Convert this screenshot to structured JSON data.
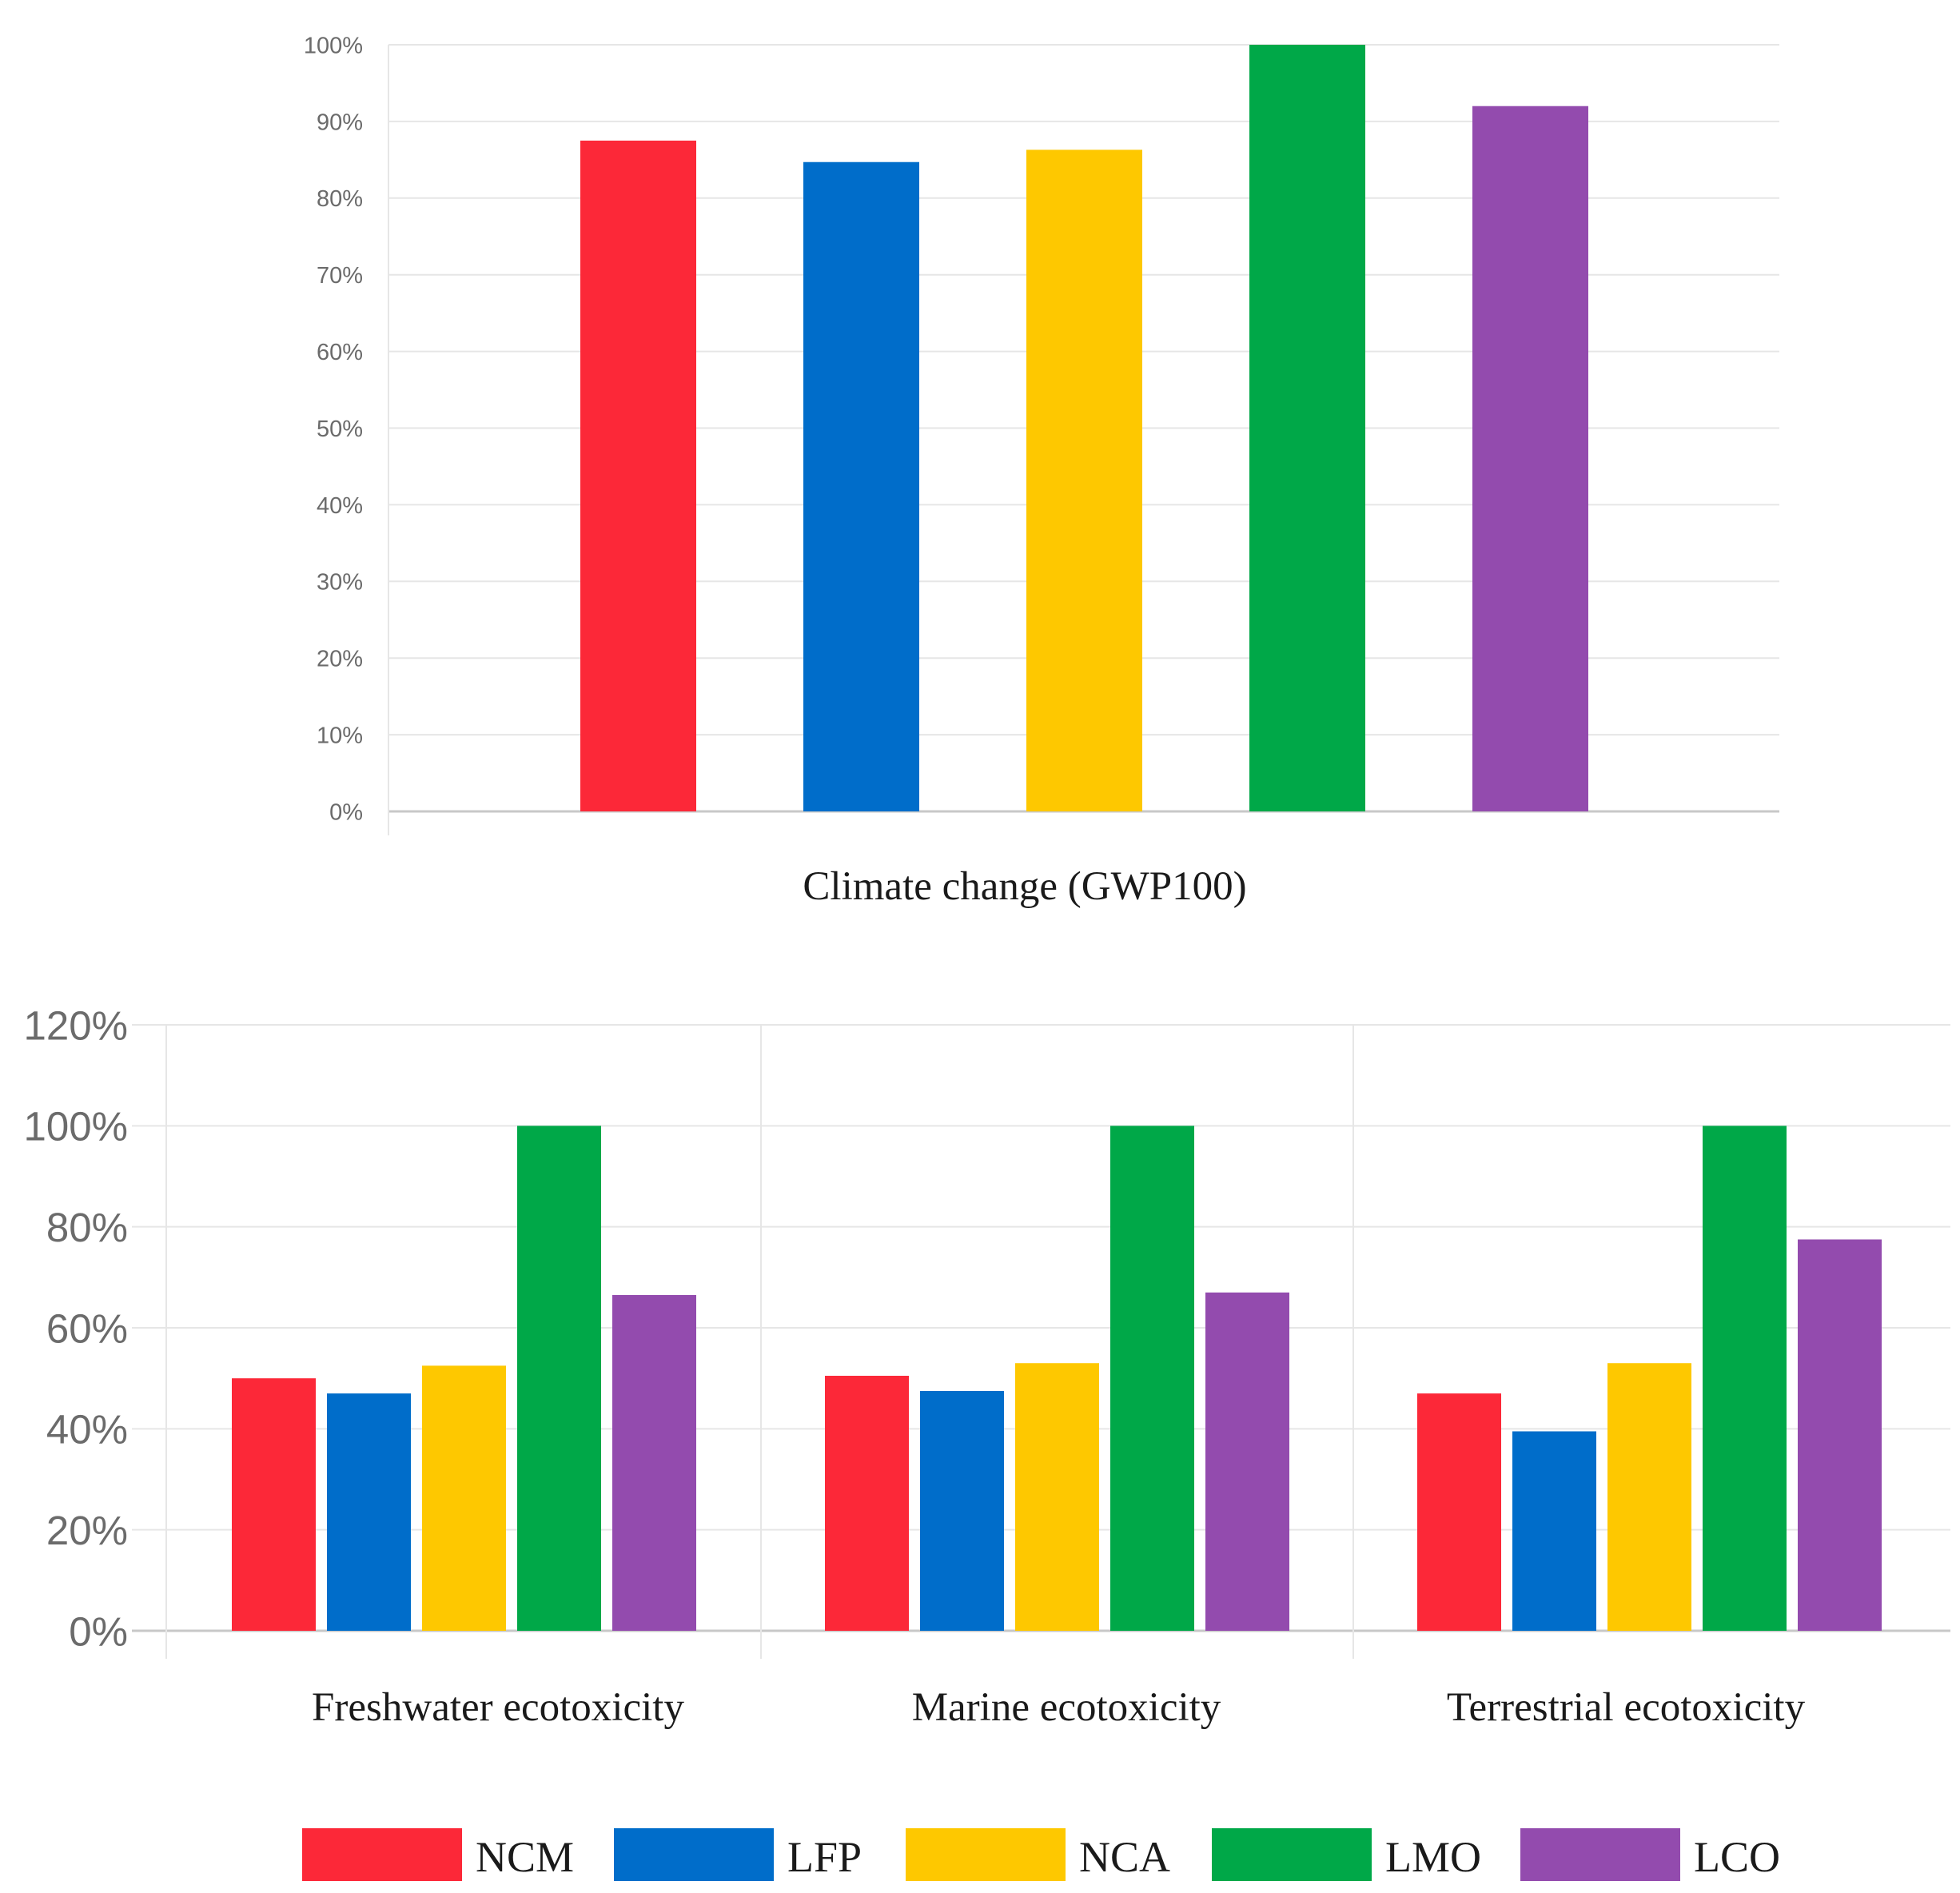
{
  "colors": {
    "NCM": "#fc2838",
    "LFP": "#006dca",
    "NCA": "#fec800",
    "LMO": "#00a848",
    "LCO": "#934bae"
  },
  "legend": {
    "items": [
      "NCM",
      "LFP",
      "NCA",
      "LMO",
      "LCO"
    ]
  },
  "chart_data": [
    {
      "type": "bar",
      "categories": [
        "Climate change (GWP100)"
      ],
      "series": [
        {
          "name": "NCM",
          "values": [
            87.5
          ]
        },
        {
          "name": "LFP",
          "values": [
            84.7
          ]
        },
        {
          "name": "NCA",
          "values": [
            86.3
          ]
        },
        {
          "name": "LMO",
          "values": [
            100
          ]
        },
        {
          "name": "LCO",
          "values": [
            92
          ]
        }
      ],
      "ylim": [
        0,
        100
      ],
      "yticks": [
        0,
        10,
        20,
        30,
        40,
        50,
        60,
        70,
        80,
        90,
        100
      ],
      "ytick_labels": [
        "0%",
        "10%",
        "20%",
        "30%",
        "40%",
        "50%",
        "60%",
        "70%",
        "80%",
        "90%",
        "100%"
      ],
      "grid": true
    },
    {
      "type": "bar",
      "categories": [
        "Freshwater ecotoxicity",
        "Marine ecotoxicity",
        "Terrestrial ecotoxicity"
      ],
      "series": [
        {
          "name": "NCM",
          "values": [
            50,
            50.5,
            47
          ]
        },
        {
          "name": "LFP",
          "values": [
            47,
            47.5,
            39.5
          ]
        },
        {
          "name": "NCA",
          "values": [
            52.5,
            53,
            53
          ]
        },
        {
          "name": "LMO",
          "values": [
            100,
            100,
            100
          ]
        },
        {
          "name": "LCO",
          "values": [
            66.5,
            67,
            77.5
          ]
        }
      ],
      "ylim": [
        0,
        120
      ],
      "yticks": [
        0,
        20,
        40,
        60,
        80,
        100,
        120
      ],
      "ytick_labels": [
        "0%",
        "20%",
        "40%",
        "60%",
        "80%",
        "100%",
        "120%"
      ],
      "grid": true,
      "legend_position": "bottom"
    }
  ]
}
